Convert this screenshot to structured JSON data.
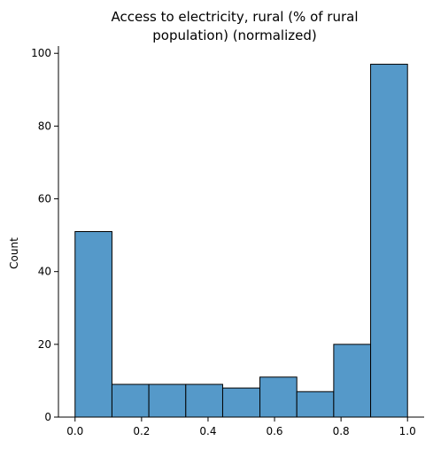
{
  "chart_data": {
    "type": "bar",
    "title_lines": [
      "Access to electricity, rural (% of rural",
      "population) (normalized)"
    ],
    "xlabel": "",
    "ylabel": "Count",
    "bin_edges": [
      0.0,
      0.111,
      0.222,
      0.333,
      0.444,
      0.556,
      0.667,
      0.778,
      0.889,
      1.0
    ],
    "values": [
      51,
      9,
      9,
      9,
      8,
      11,
      7,
      20,
      97
    ],
    "xlim": [
      -0.05,
      1.05
    ],
    "ylim": [
      0,
      102
    ],
    "x_ticks": [
      0.0,
      0.2,
      0.4,
      0.6,
      0.8,
      1.0
    ],
    "x_tick_labels": [
      "0.0",
      "0.2",
      "0.4",
      "0.6",
      "0.8",
      "1.0"
    ],
    "y_ticks": [
      0,
      20,
      40,
      60,
      80,
      100
    ],
    "y_tick_labels": [
      "0",
      "20",
      "40",
      "60",
      "80",
      "100"
    ],
    "bar_color": "#5599c9",
    "grid": false
  }
}
